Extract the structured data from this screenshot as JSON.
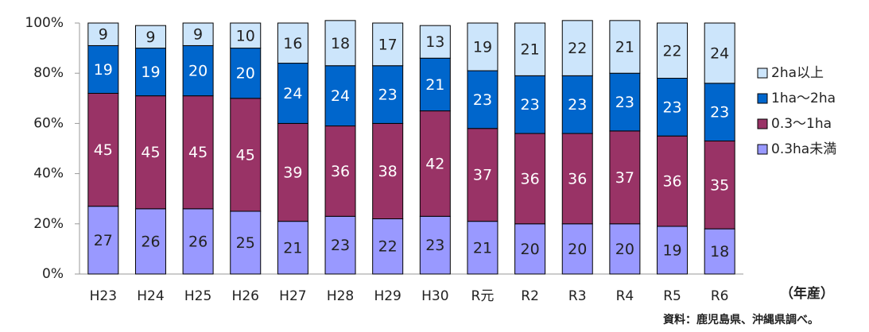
{
  "chart_data": {
    "type": "bar",
    "stacked": true,
    "categories": [
      "H23",
      "H24",
      "H25",
      "H26",
      "H27",
      "H28",
      "H29",
      "H30",
      "R元",
      "R2",
      "R3",
      "R4",
      "R5",
      "R6"
    ],
    "series": [
      {
        "name": "0.3ha未満",
        "color": "#9999ff",
        "values": [
          27,
          26,
          26,
          25,
          21,
          23,
          22,
          23,
          21,
          20,
          20,
          20,
          19,
          18
        ]
      },
      {
        "name": "0.3〜1ha",
        "color": "#993366",
        "values": [
          45,
          45,
          45,
          45,
          39,
          36,
          38,
          42,
          37,
          36,
          36,
          37,
          36,
          35
        ]
      },
      {
        "name": "1ha〜2ha",
        "color": "#0066cc",
        "values": [
          19,
          19,
          20,
          20,
          24,
          24,
          23,
          21,
          23,
          23,
          23,
          23,
          23,
          23
        ]
      },
      {
        "name": "2ha以上",
        "color": "#cce5fb",
        "values": [
          9,
          9,
          9,
          10,
          16,
          18,
          17,
          13,
          19,
          21,
          22,
          21,
          22,
          24
        ]
      }
    ],
    "ylim": [
      0,
      100
    ],
    "yticks": [
      {
        "value": 0,
        "label": "0%"
      },
      {
        "value": 20,
        "label": "20%"
      },
      {
        "value": 40,
        "label": "40%"
      },
      {
        "value": 60,
        "label": "60%"
      },
      {
        "value": 80,
        "label": "80%"
      },
      {
        "value": 100,
        "label": "100%"
      }
    ],
    "x_unit": "（年産）",
    "source": "資料：鹿児島県、沖縄県調べ。",
    "legend": "right"
  }
}
